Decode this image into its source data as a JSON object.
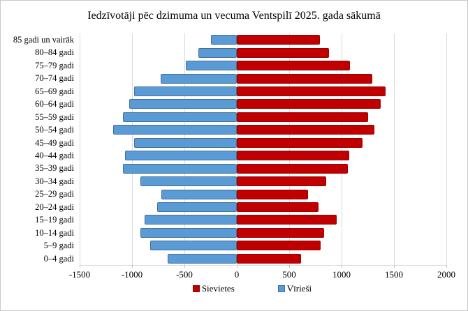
{
  "chart_data": {
    "type": "bar",
    "orientation": "horizontal",
    "title": "Iedzīvotāji pēc dzimuma un vecuma Ventspilī 2025. gada sākumā",
    "categories": [
      "85 gadi un vairāk",
      "80–84 gadi",
      "75–79 gadi",
      "70–74 gadi",
      "65–69 gadi",
      "60–64 gadi",
      "55–59 gadi",
      "50–54 gadi",
      "45–49 gadi",
      "40–44 gadi",
      "35–39 gadi",
      "30–34 gadi",
      "25–29 gadi",
      "20–24 gadi",
      "15–19 gadi",
      "10–14 gadi",
      "5–9 gadi",
      "0–4 gadi"
    ],
    "series": [
      {
        "name": "Sievietes",
        "color": "#c00000",
        "border_color": "#9e0000",
        "values": [
          790,
          880,
          1080,
          1290,
          1420,
          1370,
          1250,
          1310,
          1200,
          1070,
          1060,
          850,
          680,
          780,
          950,
          830,
          800,
          610
        ]
      },
      {
        "name": "Vīrieši",
        "color": "#5b9bd5",
        "border_color": "#41719c",
        "values": [
          -250,
          -370,
          -490,
          -730,
          -980,
          -1030,
          -1090,
          -1180,
          -980,
          -1070,
          -1090,
          -920,
          -720,
          -760,
          -880,
          -920,
          -830,
          -660
        ]
      }
    ],
    "x_tick_labels": [
      "-1500",
      "-1000",
      "-500",
      "0",
      "500",
      "1000",
      "1500",
      "2000"
    ],
    "x_tick_values": [
      -1500,
      -1000,
      -500,
      0,
      500,
      1000,
      1500,
      2000
    ],
    "xlim": [
      -1500,
      2000
    ],
    "grid": true,
    "legend_position": "bottom"
  },
  "colors": {
    "gridline": "#d9d9d9",
    "axis_line": "#d9d9d9",
    "tick": "#bfbfbf",
    "figure_border": "#c9c9c9",
    "background": "#ffffff",
    "text": "#000000"
  }
}
